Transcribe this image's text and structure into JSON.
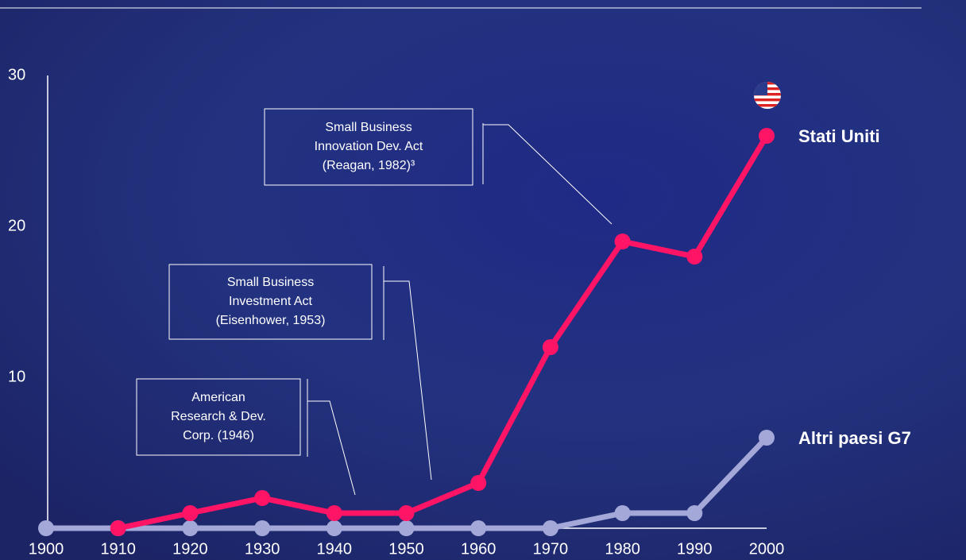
{
  "chart_data": {
    "type": "line",
    "x": [
      1900,
      1910,
      1920,
      1930,
      1940,
      1950,
      1960,
      1970,
      1980,
      1990,
      2000
    ],
    "xlim": [
      1900,
      2000
    ],
    "xticks": [
      1900,
      1910,
      1920,
      1930,
      1940,
      1950,
      1960,
      1970,
      1980,
      1990,
      2000
    ],
    "ylim": [
      0,
      30
    ],
    "yticks": [
      10,
      20,
      30
    ],
    "series": [
      {
        "name": "Altri paesi G7",
        "color": "#a4a8d8",
        "values": [
          0,
          0,
          0,
          0,
          0,
          0,
          0,
          0,
          1,
          1,
          6
        ]
      },
      {
        "name": "Stati Uniti",
        "color": "#ff1466",
        "values": [
          null,
          0,
          1,
          2,
          1,
          1,
          3,
          12,
          19,
          18,
          26
        ]
      }
    ],
    "annotations": [
      {
        "text": [
          "Small Business",
          "Innovation Dev. Act",
          "(Reagan, 1982)³"
        ]
      },
      {
        "text": [
          "Small Business",
          "Investment Act",
          "(Eisenhower, 1953)"
        ]
      },
      {
        "text": [
          "American",
          "Research & Dev.",
          "Corp. (1946)"
        ]
      }
    ]
  }
}
